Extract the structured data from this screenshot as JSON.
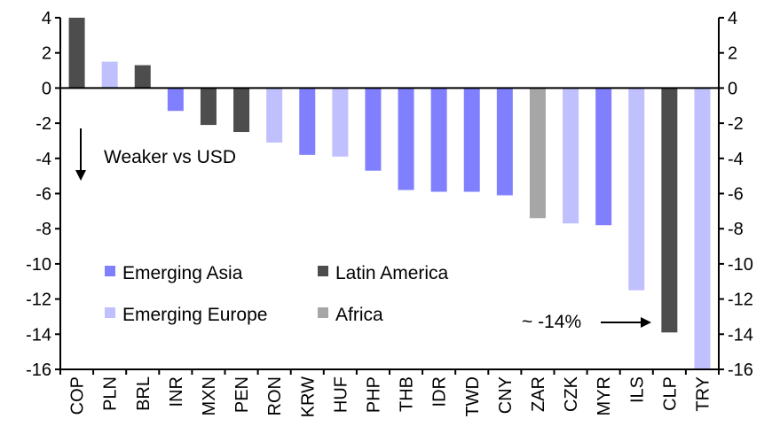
{
  "chart_data": {
    "type": "bar",
    "title": "",
    "xlabel": "",
    "ylabel": "",
    "ylim": [
      -16,
      4
    ],
    "yticks": [
      4,
      2,
      0,
      -2,
      -4,
      -6,
      -8,
      -10,
      -12,
      -14,
      -16
    ],
    "grid": false,
    "legend_placement": "lower-left",
    "categories": [
      "COP",
      "PLN",
      "BRL",
      "INR",
      "MXN",
      "PEN",
      "RON",
      "KRW",
      "HUF",
      "PHP",
      "THB",
      "IDR",
      "TWD",
      "CNY",
      "ZAR",
      "CZK",
      "MYR",
      "ILS",
      "CLP",
      "TRY"
    ],
    "values": [
      4.0,
      1.5,
      1.3,
      -1.3,
      -2.1,
      -2.5,
      -3.1,
      -3.8,
      -3.9,
      -4.7,
      -5.8,
      -5.9,
      -5.9,
      -6.1,
      -7.4,
      -7.7,
      -7.8,
      -11.5,
      -13.9,
      -16.0
    ],
    "groups": [
      "Latin America",
      "Emerging Europe",
      "Latin America",
      "Emerging Asia",
      "Latin America",
      "Latin America",
      "Emerging Europe",
      "Emerging Asia",
      "Emerging Europe",
      "Emerging Asia",
      "Emerging Asia",
      "Emerging Asia",
      "Emerging Asia",
      "Emerging Asia",
      "Africa",
      "Emerging Europe",
      "Emerging Asia",
      "Emerging Europe",
      "Latin America",
      "Emerging Europe"
    ],
    "legend": [
      {
        "name": "Emerging Asia",
        "color": "#8080FF"
      },
      {
        "name": "Latin America",
        "color": "#4D4D4D"
      },
      {
        "name": "Emerging Europe",
        "color": "#C0C0FF"
      },
      {
        "name": "Africa",
        "color": "#A6A6A6"
      }
    ],
    "annotations": {
      "weaker": "Weaker vs USD",
      "clp_note": "~ -14%"
    }
  }
}
